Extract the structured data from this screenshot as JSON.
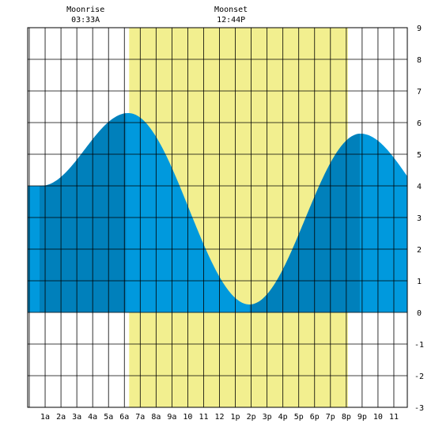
{
  "chart_data": {
    "type": "area",
    "title": "",
    "xlabel": "",
    "ylabel": "",
    "ylim": [
      -3,
      9
    ],
    "yticks": [
      -3,
      -2,
      -1,
      0,
      1,
      2,
      3,
      4,
      5,
      6,
      7,
      8,
      9
    ],
    "xlim": [
      -0.1,
      23.85
    ],
    "xticks": [
      {
        "h": 1,
        "label": "1a"
      },
      {
        "h": 2,
        "label": "2a"
      },
      {
        "h": 3,
        "label": "3a"
      },
      {
        "h": 4,
        "label": "4a"
      },
      {
        "h": 5,
        "label": "5a"
      },
      {
        "h": 6,
        "label": "6a"
      },
      {
        "h": 7,
        "label": "7a"
      },
      {
        "h": 8,
        "label": "8a"
      },
      {
        "h": 9,
        "label": "9a"
      },
      {
        "h": 10,
        "label": "10"
      },
      {
        "h": 11,
        "label": "11"
      },
      {
        "h": 12,
        "label": "12"
      },
      {
        "h": 13,
        "label": "1p"
      },
      {
        "h": 14,
        "label": "2p"
      },
      {
        "h": 15,
        "label": "3p"
      },
      {
        "h": 16,
        "label": "4p"
      },
      {
        "h": 17,
        "label": "5p"
      },
      {
        "h": 18,
        "label": "6p"
      },
      {
        "h": 19,
        "label": "7p"
      },
      {
        "h": 20,
        "label": "8p"
      },
      {
        "h": 21,
        "label": "9p"
      },
      {
        "h": 22,
        "label": "10"
      },
      {
        "h": 23,
        "label": "11"
      }
    ],
    "tide_extremes": [
      {
        "h": 0.75,
        "value": 4.0
      },
      {
        "h": 6.25,
        "value": 6.3
      },
      {
        "h": 13.9,
        "value": 0.25
      },
      {
        "h": 20.9,
        "value": 5.65
      }
    ],
    "tide_end": {
      "h": 23.85,
      "value": 4.3
    },
    "daylight": {
      "start_h": 6.3,
      "end_h": 20.1
    },
    "dark_bands": [
      {
        "start_h": 0.65,
        "end_h": 6.1
      },
      {
        "start_h": 13.9,
        "end_h": 20.85
      }
    ],
    "moon_events": [
      {
        "h": 3.55,
        "name": "Moonrise",
        "time": "03:33A"
      },
      {
        "h": 12.73,
        "name": "Moonset",
        "time": "12:44P"
      }
    ],
    "colors": {
      "daylight": "#f2ef8f",
      "tide": "#0099dd",
      "tide_dark": "#0080bb",
      "grid": "#000000"
    }
  }
}
